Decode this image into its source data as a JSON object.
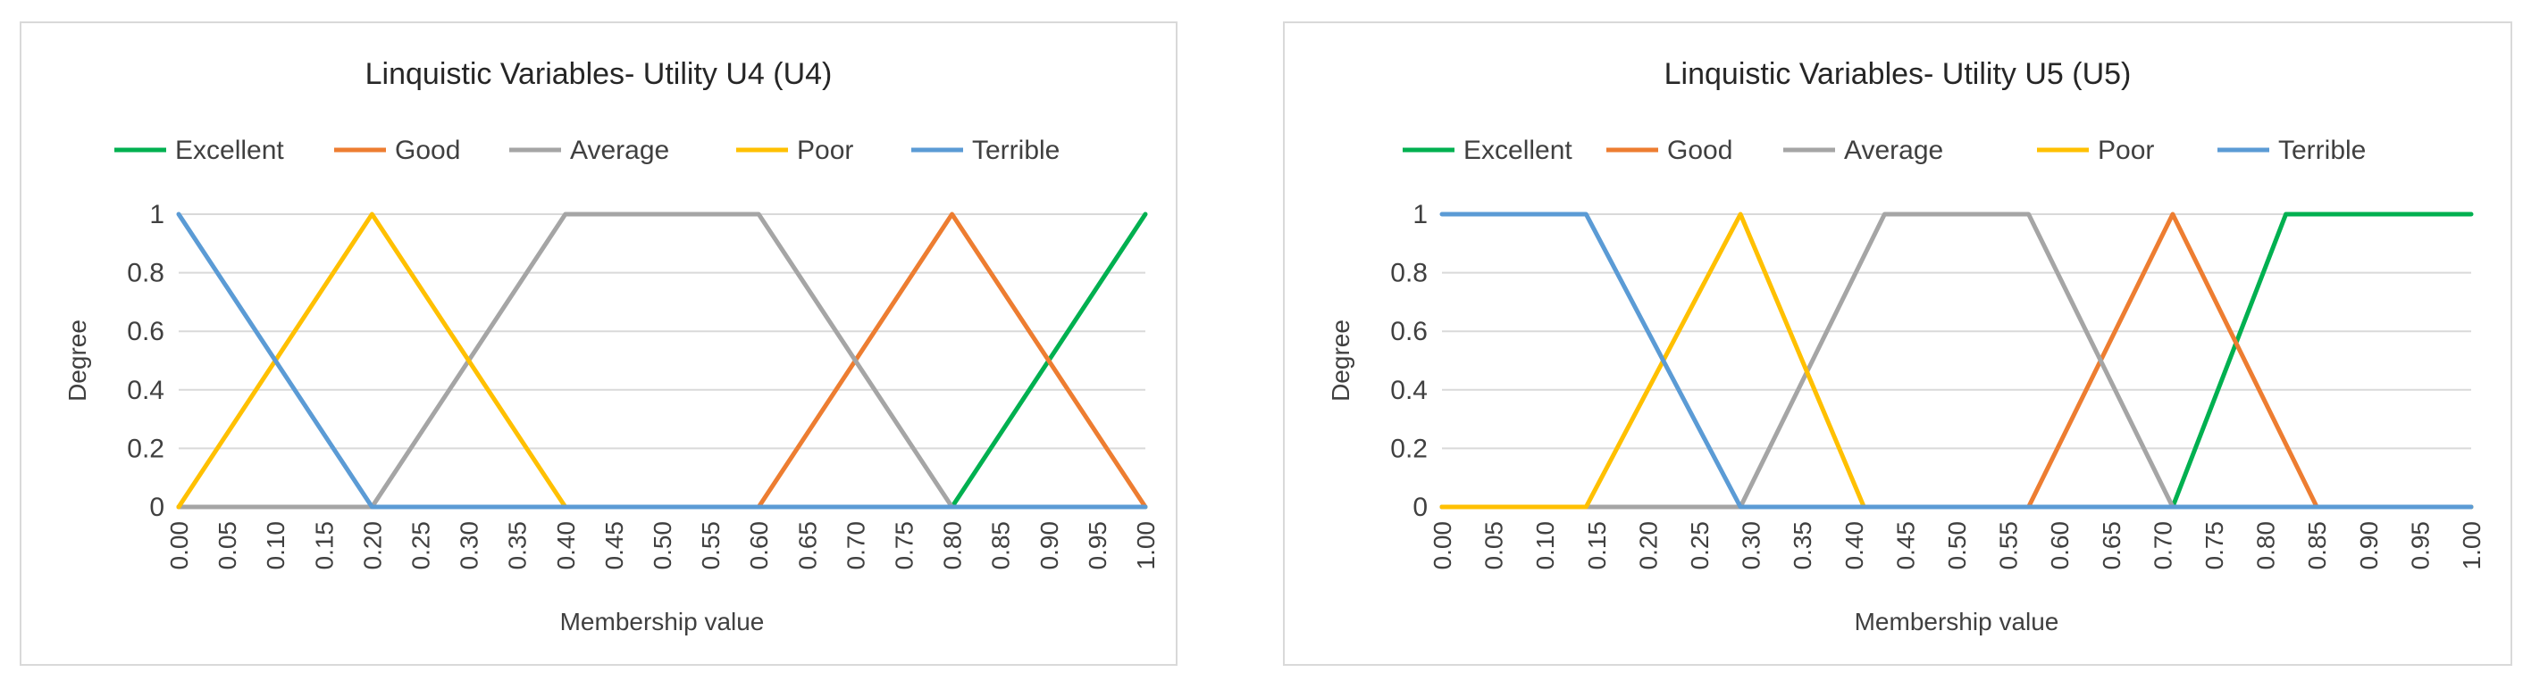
{
  "chart_data": [
    {
      "type": "line",
      "title": "Linquistic Variables- Utility U4 (U4)",
      "xlabel": "Membership value",
      "ylabel": "Degree",
      "ylim": [
        0,
        1
      ],
      "yticks": [
        "0",
        "0.2",
        "0.4",
        "0.6",
        "0.8",
        "1"
      ],
      "xticks": [
        "0.00",
        "0.05",
        "0.10",
        "0.15",
        "0.20",
        "0.25",
        "0.30",
        "0.35",
        "0.40",
        "0.45",
        "0.50",
        "0.55",
        "0.60",
        "0.65",
        "0.70",
        "0.75",
        "0.80",
        "0.85",
        "0.90",
        "0.95",
        "1.00"
      ],
      "grid": true,
      "legend_position": "top",
      "series": [
        {
          "name": "Excellent",
          "color": "#00b050",
          "x": [
            0,
            0.8,
            1.0
          ],
          "y": [
            0,
            0,
            1
          ]
        },
        {
          "name": "Good",
          "color": "#ed7d31",
          "x": [
            0,
            0.6,
            0.8,
            1.0
          ],
          "y": [
            0,
            0,
            1,
            0
          ]
        },
        {
          "name": "Average",
          "color": "#a5a5a5",
          "x": [
            0,
            0.2,
            0.4,
            0.6,
            0.8,
            1.0
          ],
          "y": [
            0,
            0,
            1,
            1,
            0,
            0
          ]
        },
        {
          "name": "Poor",
          "color": "#ffc000",
          "x": [
            0,
            0.2,
            0.4,
            1.0
          ],
          "y": [
            0,
            1,
            0,
            0
          ]
        },
        {
          "name": "Terrible",
          "color": "#5b9bd5",
          "x": [
            0,
            0.2,
            1.0
          ],
          "y": [
            1,
            0,
            0
          ]
        }
      ]
    },
    {
      "type": "line",
      "title": "Linquistic Variables- Utility U5 (U5)",
      "xlabel": "Membership value",
      "ylabel": "Degree",
      "ylim": [
        0,
        1
      ],
      "yticks": [
        "0",
        "0.2",
        "0.4",
        "0.6",
        "0.8",
        "1"
      ],
      "xticks": [
        "0.00",
        "0.05",
        "0.10",
        "0.15",
        "0.20",
        "0.25",
        "0.30",
        "0.35",
        "0.40",
        "0.45",
        "0.50",
        "0.55",
        "0.60",
        "0.65",
        "0.70",
        "0.75",
        "0.80",
        "0.85",
        "0.90",
        "0.95",
        "1.00"
      ],
      "grid": true,
      "legend_position": "top",
      "series": [
        {
          "name": "Excellent",
          "color": "#00b050",
          "x": [
            0,
            0.71,
            0.82,
            1.0
          ],
          "y": [
            0,
            0,
            1,
            1
          ]
        },
        {
          "name": "Good",
          "color": "#ed7d31",
          "x": [
            0,
            0.57,
            0.71,
            0.85,
            1.0
          ],
          "y": [
            0,
            0,
            1,
            0,
            0
          ]
        },
        {
          "name": "Average",
          "color": "#a5a5a5",
          "x": [
            0,
            0.29,
            0.43,
            0.57,
            0.71,
            1.0
          ],
          "y": [
            0,
            0,
            1,
            1,
            0,
            0
          ]
        },
        {
          "name": "Poor",
          "color": "#ffc000",
          "x": [
            0,
            0.14,
            0.29,
            0.41,
            1.0
          ],
          "y": [
            0,
            0,
            1,
            0,
            0
          ]
        },
        {
          "name": "Terrible",
          "color": "#5b9bd5",
          "x": [
            0,
            0.14,
            0.29,
            1.0
          ],
          "y": [
            1,
            1,
            0,
            0
          ]
        }
      ]
    }
  ]
}
